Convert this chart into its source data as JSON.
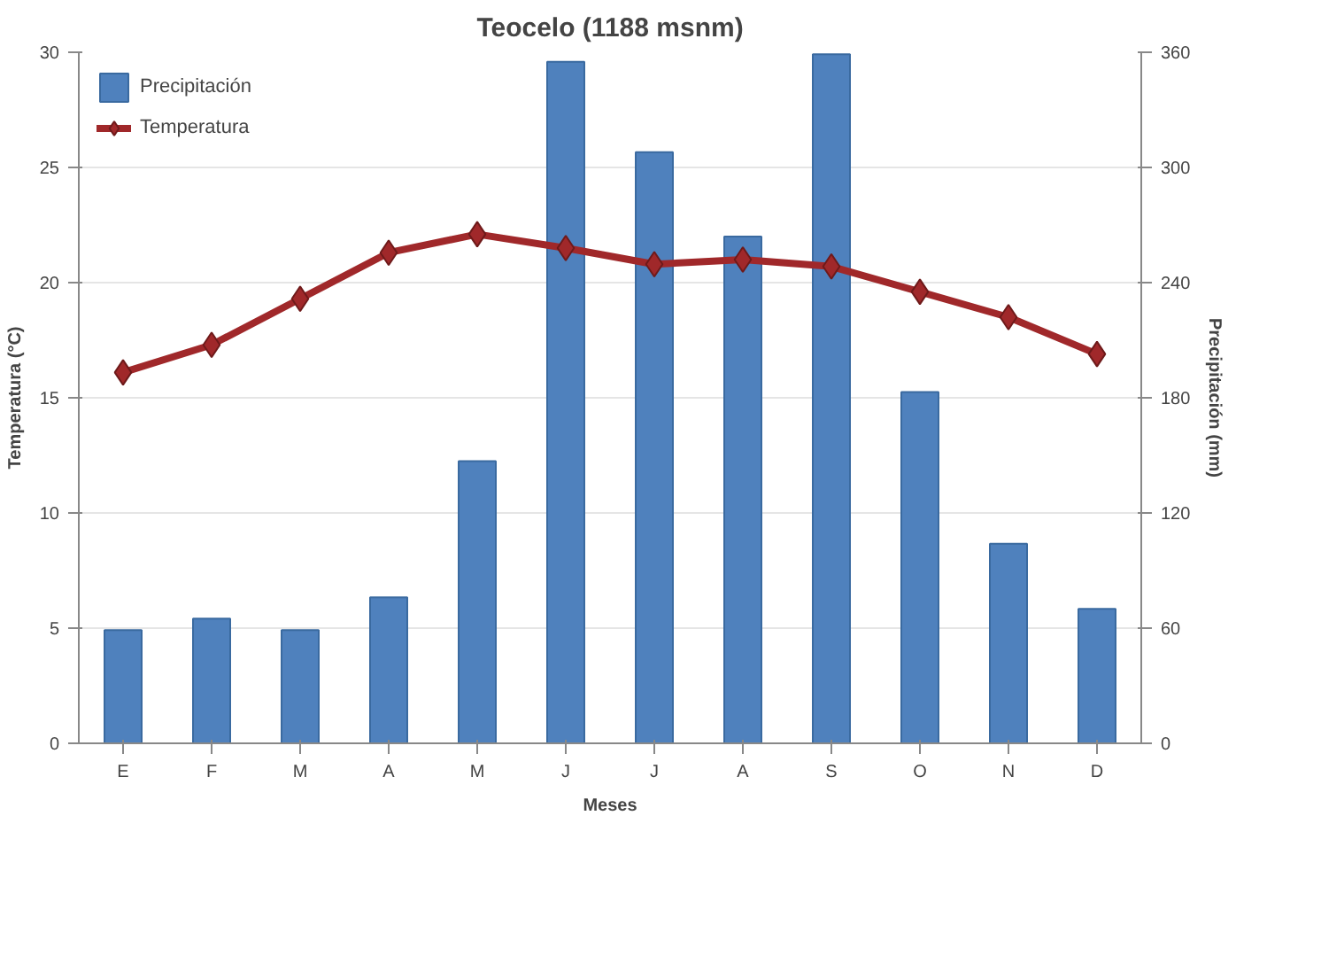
{
  "chart_data": {
    "type": "bar",
    "title": "Teocelo (1188 msnm)",
    "xlabel": "Meses",
    "ylabel": "Temperatura (°C)",
    "y2label": "Precipitación (mm)",
    "categories": [
      "E",
      "F",
      "M",
      "A",
      "M",
      "J",
      "J",
      "A",
      "S",
      "O",
      "N",
      "D"
    ],
    "series": [
      {
        "name": "Precipitación",
        "type": "bar",
        "axis": "y2",
        "color": "#4f81bd",
        "values": [
          59,
          65,
          59,
          76,
          147,
          355,
          308,
          264,
          359,
          183,
          104,
          70
        ]
      },
      {
        "name": "Temperatura",
        "type": "line",
        "color": "#a0282a",
        "marker": "diamond",
        "values": [
          16.1,
          17.3,
          19.3,
          21.3,
          22.1,
          21.5,
          20.8,
          21.0,
          20.7,
          19.6,
          18.5,
          16.9
        ]
      }
    ],
    "ylim": [
      0,
      30
    ],
    "yticks": [
      0,
      5,
      10,
      15,
      20,
      25,
      30
    ],
    "y2lim": [
      0,
      360
    ],
    "y2ticks": [
      0,
      60,
      120,
      180,
      240,
      300,
      360
    ],
    "grid": "y",
    "legend": "top left"
  }
}
